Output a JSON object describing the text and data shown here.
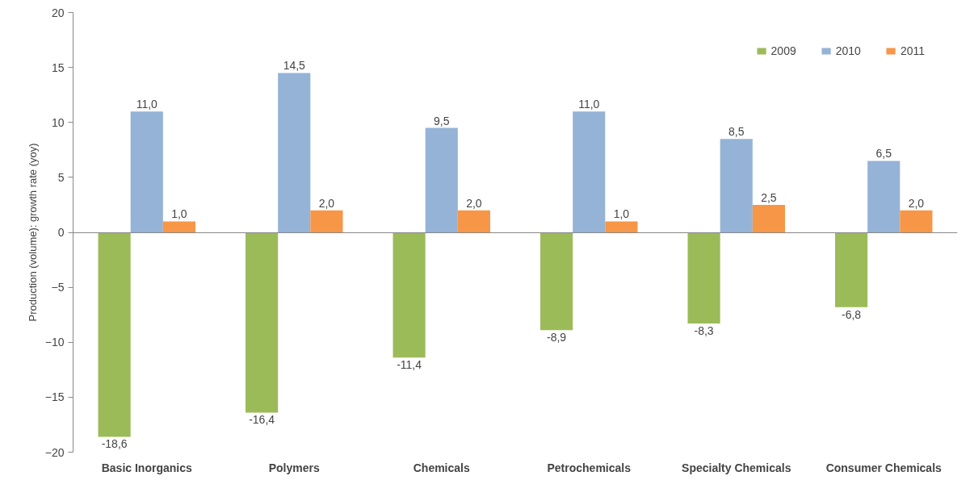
{
  "chart_data": {
    "type": "bar",
    "ylabel": "Production (volume): growth rate (yoy)",
    "categories": [
      "Basic Inorganics",
      "Polymers",
      "Chemicals",
      "Petrochemicals",
      "Specialty Chemicals",
      "Consumer Chemicals"
    ],
    "series": [
      {
        "name": "2009",
        "color": "#9bbb59",
        "values": [
          -18.6,
          -16.4,
          -11.4,
          -8.9,
          -8.3,
          -6.8
        ],
        "value_labels": [
          "-18,6",
          "-16,4",
          "-11,4",
          "-8,9",
          "-8,3",
          "-6,8"
        ]
      },
      {
        "name": "2010",
        "color": "#95b3d7",
        "values": [
          11.0,
          14.5,
          9.5,
          11.0,
          8.5,
          6.5
        ],
        "value_labels": [
          "11,0",
          "14,5",
          "9,5",
          "11,0",
          "8,5",
          "6,5"
        ]
      },
      {
        "name": "2011",
        "color": "#f79646",
        "values": [
          1.0,
          2.0,
          2.0,
          1.0,
          2.5,
          2.0
        ],
        "value_labels": [
          "1,0",
          "2,0",
          "2,0",
          "1,0",
          "2,5",
          "2,0"
        ]
      }
    ],
    "ylim": [
      -20,
      20
    ],
    "yticks": [
      -20,
      -15,
      -10,
      -5,
      0,
      5,
      10,
      15,
      20
    ],
    "legend": "top right"
  }
}
